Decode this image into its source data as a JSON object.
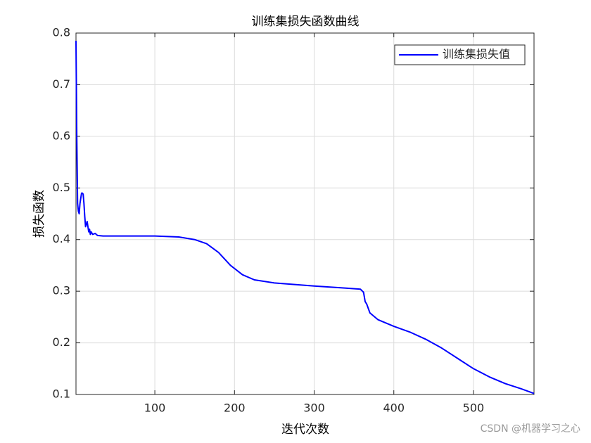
{
  "chart_data": {
    "type": "line",
    "title": "训练集损失函数曲线",
    "x_label": "迭代次数",
    "y_label": "损失函数",
    "watermark": "CSDN @机器学习之心",
    "xlim": [
      1,
      576
    ],
    "ylim": [
      0.1,
      0.8
    ],
    "xticks": [
      100,
      200,
      300,
      400,
      500
    ],
    "yticks": [
      0.1,
      0.2,
      0.3,
      0.4,
      0.5,
      0.6,
      0.7,
      0.8
    ],
    "grid": true,
    "legend": "top-right",
    "x": [
      1,
      2,
      3,
      4,
      5,
      6,
      7,
      8,
      9,
      10,
      11,
      12,
      13,
      14,
      15,
      16,
      17,
      18,
      19,
      20,
      22,
      25,
      28,
      35,
      60,
      100,
      130,
      150,
      165,
      180,
      195,
      210,
      225,
      250,
      300,
      340,
      358,
      362,
      364,
      366,
      370,
      380,
      400,
      420,
      440,
      460,
      480,
      500,
      520,
      540,
      560,
      576
    ],
    "series": [
      {
        "name": "训练集损失值",
        "color": "#0000ff",
        "values": [
          0.785,
          0.6,
          0.47,
          0.455,
          0.45,
          0.47,
          0.48,
          0.49,
          0.49,
          0.488,
          0.47,
          0.445,
          0.425,
          0.43,
          0.435,
          0.425,
          0.415,
          0.42,
          0.41,
          0.415,
          0.41,
          0.412,
          0.408,
          0.407,
          0.407,
          0.407,
          0.405,
          0.4,
          0.392,
          0.375,
          0.35,
          0.332,
          0.322,
          0.316,
          0.31,
          0.306,
          0.304,
          0.298,
          0.28,
          0.275,
          0.258,
          0.245,
          0.232,
          0.221,
          0.207,
          0.19,
          0.17,
          0.15,
          0.134,
          0.121,
          0.111,
          0.102
        ]
      }
    ]
  }
}
